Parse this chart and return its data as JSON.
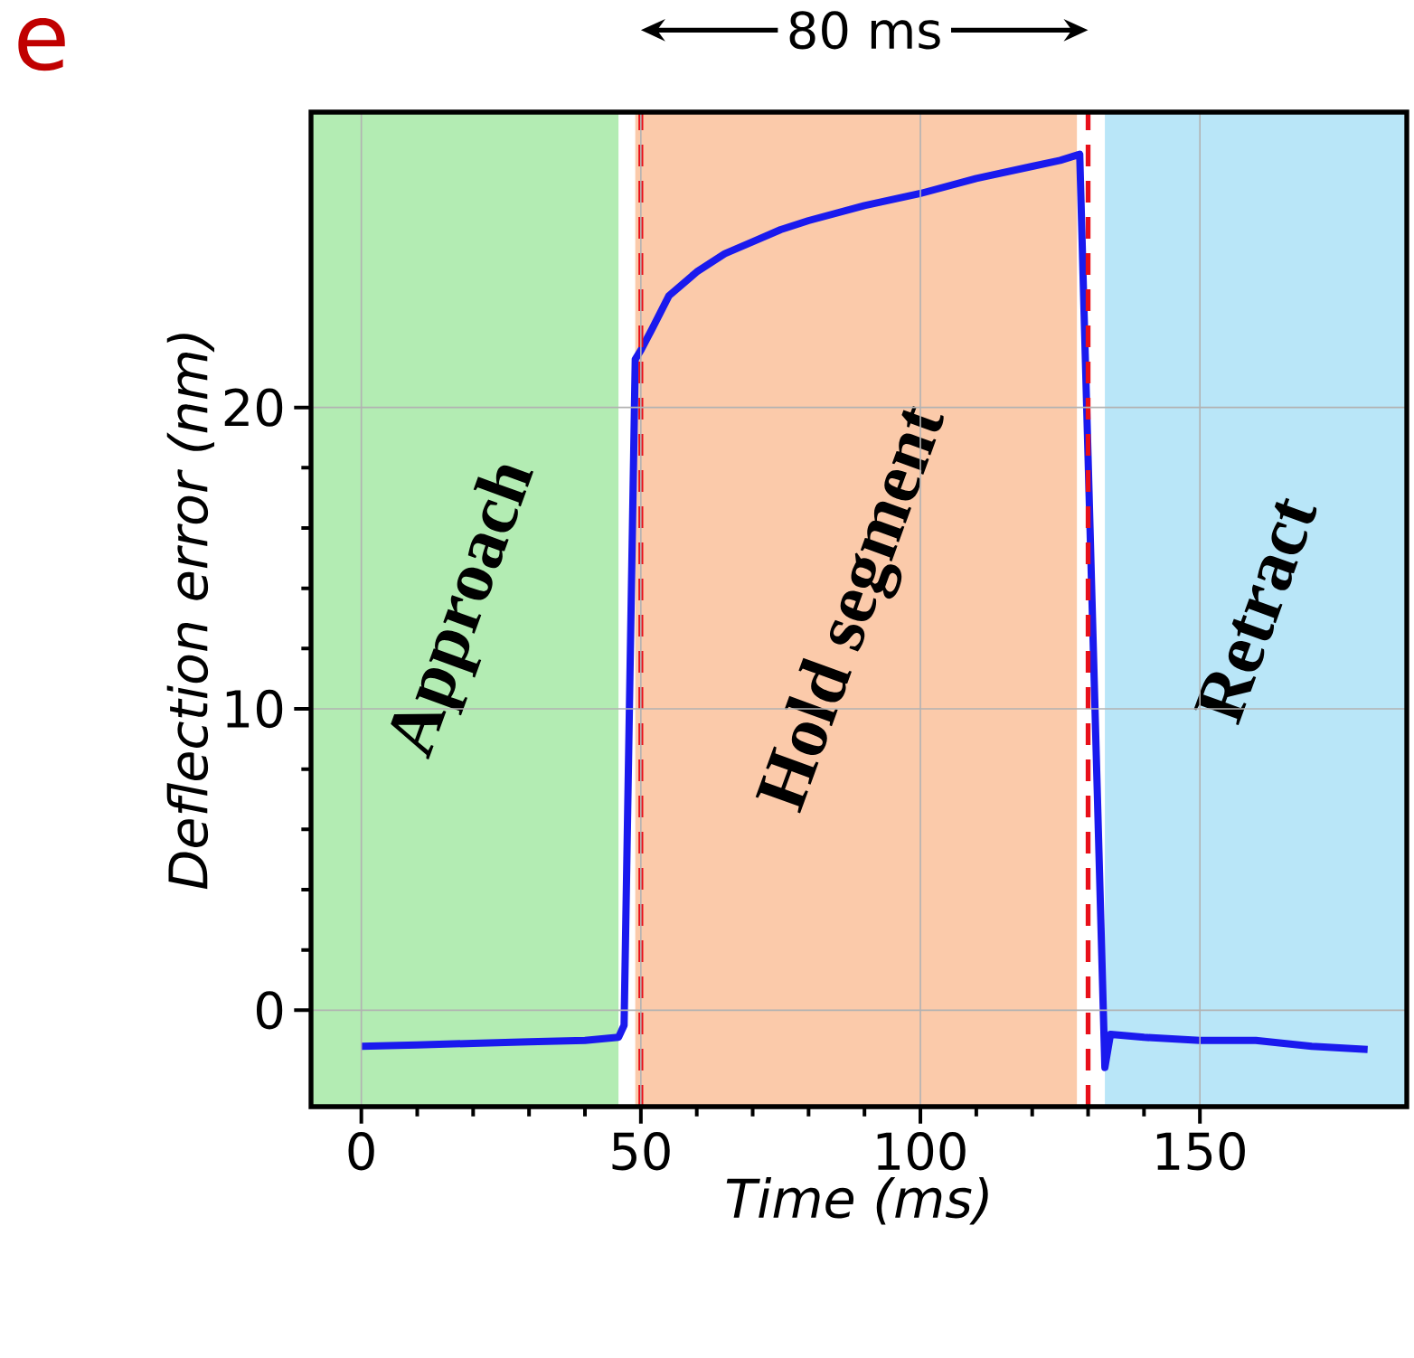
{
  "chart_data": {
    "type": "line",
    "xlabel": "Time (ms)",
    "ylabel": "Deflection error (nm)",
    "xlim": [
      -9,
      187
    ],
    "ylim": [
      -3.2,
      29.8
    ],
    "xticks": [
      0,
      50,
      100,
      150
    ],
    "yticks": [
      0,
      10,
      20
    ],
    "grid": true,
    "marker": "none",
    "line_style": "solid",
    "series": [
      {
        "color": "#1a1aee",
        "x": [
          0,
          10,
          20,
          30,
          40,
          46,
          47,
          49,
          50,
          52,
          55,
          60,
          65,
          70,
          75,
          80,
          90,
          100,
          110,
          115,
          120,
          125,
          128.5,
          133,
          134,
          140,
          150,
          160,
          170,
          180
        ],
        "values": [
          -1.2,
          -1.15,
          -1.1,
          -1.05,
          -1.0,
          -0.9,
          -0.5,
          21.6,
          21.9,
          22.6,
          23.7,
          24.5,
          25.1,
          25.5,
          25.9,
          26.2,
          26.7,
          27.1,
          27.6,
          27.8,
          28.0,
          28.2,
          28.4,
          -1.9,
          -0.8,
          -0.9,
          -1.0,
          -1.0,
          -1.2,
          -1.3
        ]
      }
    ],
    "bands": [
      {
        "axis": "x",
        "from": -9,
        "to": 46,
        "label": "Approach",
        "color": "#b3ecb3"
      },
      {
        "axis": "x",
        "from": 49,
        "to": 128,
        "label": "Hold segment",
        "color": "#fbcaaa"
      },
      {
        "axis": "x",
        "from": 133,
        "to": 187,
        "label": "Retract",
        "color": "#b9e6f8"
      }
    ],
    "ref_lines": [
      {
        "axis": "x",
        "value": 50,
        "color": "#e8101a",
        "line_style": "dashed"
      },
      {
        "axis": "x",
        "value": 130,
        "color": "#e8101a",
        "line_style": "dashed"
      }
    ],
    "annotations": [
      "80 ms",
      "e"
    ]
  }
}
